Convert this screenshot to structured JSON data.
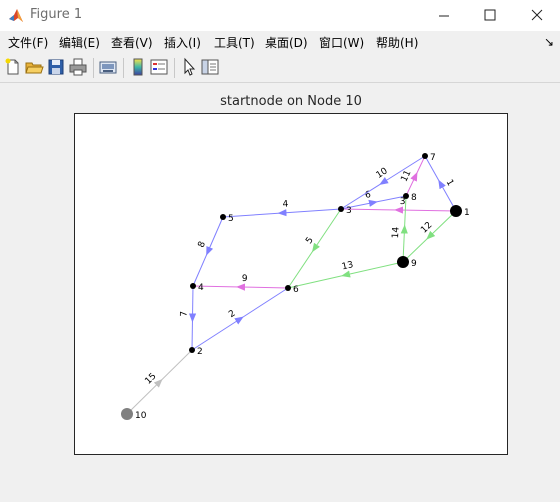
{
  "window": {
    "title": "Figure 1"
  },
  "menu": [
    {
      "label": "文件(F)"
    },
    {
      "label": "编辑(E)"
    },
    {
      "label": "查看(V)"
    },
    {
      "label": "插入(I)"
    },
    {
      "label": "工具(T)"
    },
    {
      "label": "桌面(D)"
    },
    {
      "label": "窗口(W)"
    },
    {
      "label": "帮助(H)"
    }
  ],
  "menu_corner": "↘",
  "toolbar": {
    "buttons": [
      {
        "icon": "new-figure-icon"
      },
      {
        "icon": "open-file-icon"
      },
      {
        "icon": "save-icon"
      },
      {
        "icon": "print-icon"
      },
      {
        "icon": "link-plot-icon"
      },
      {
        "icon": "insert-colorbar-icon"
      },
      {
        "icon": "insert-legend-icon"
      },
      {
        "icon": "edit-plot-pointer-icon"
      },
      {
        "icon": "property-inspector-icon"
      }
    ]
  },
  "plot": {
    "title": "startnode on Node 10",
    "colors": {
      "blue": "#8080ff",
      "green": "#80e080",
      "magenta": "#e070e0",
      "gray": "#c0c0c0",
      "node": "#000000",
      "start_node": "#808080"
    },
    "nodes": [
      {
        "id": "1",
        "label": "1",
        "size": "large"
      },
      {
        "id": "2",
        "label": "2",
        "size": "small"
      },
      {
        "id": "3",
        "label": "3",
        "size": "small"
      },
      {
        "id": "4",
        "label": "4",
        "size": "small"
      },
      {
        "id": "5",
        "label": "5",
        "size": "small"
      },
      {
        "id": "6",
        "label": "6",
        "size": "small"
      },
      {
        "id": "7",
        "label": "7",
        "size": "small"
      },
      {
        "id": "8",
        "label": "8",
        "size": "small"
      },
      {
        "id": "9",
        "label": "9",
        "size": "large"
      },
      {
        "id": "10",
        "label": "10",
        "size": "start"
      }
    ],
    "edges": [
      {
        "from": "1",
        "to": "7",
        "weight": "1",
        "color": "blue"
      },
      {
        "from": "2",
        "to": "6",
        "weight": "2",
        "color": "blue"
      },
      {
        "from": "1",
        "to": "3",
        "weight": "3",
        "color": "magenta"
      },
      {
        "from": "3",
        "to": "5",
        "weight": "4",
        "color": "blue"
      },
      {
        "from": "3",
        "to": "6",
        "weight": "5",
        "color": "green"
      },
      {
        "from": "3",
        "to": "8",
        "weight": "6",
        "color": "blue"
      },
      {
        "from": "4",
        "to": "2",
        "weight": "7",
        "color": "blue"
      },
      {
        "from": "5",
        "to": "4",
        "weight": "8",
        "color": "blue"
      },
      {
        "from": "6",
        "to": "4",
        "weight": "9",
        "color": "magenta"
      },
      {
        "from": "7",
        "to": "3",
        "weight": "10",
        "color": "blue"
      },
      {
        "from": "8",
        "to": "7",
        "weight": "11",
        "color": "magenta"
      },
      {
        "from": "1",
        "to": "9",
        "weight": "12",
        "color": "green"
      },
      {
        "from": "9",
        "to": "6",
        "weight": "13",
        "color": "green"
      },
      {
        "from": "9",
        "to": "8",
        "weight": "14",
        "color": "green"
      },
      {
        "from": "10",
        "to": "2",
        "weight": "15",
        "color": "gray"
      }
    ]
  }
}
